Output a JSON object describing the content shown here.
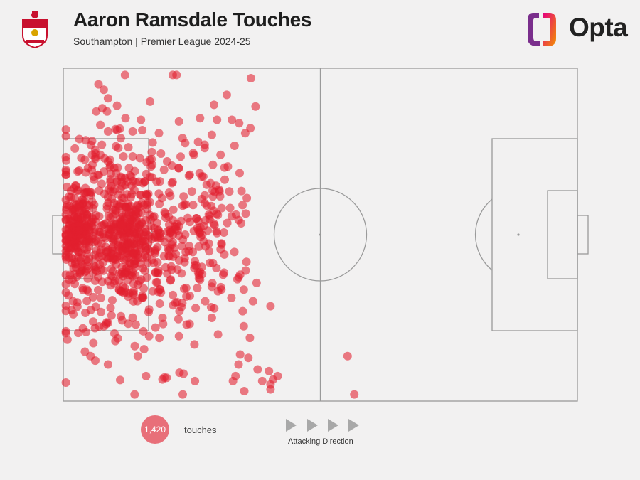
{
  "header": {
    "title": "Aaron Ramsdale Touches",
    "subtitle": "Southampton | Premier League 2024-25",
    "logo_text": "Opta"
  },
  "icons": {
    "crest": "southampton-crest-icon",
    "logo": "opta-logo-icon",
    "direction": "play-arrow-icon"
  },
  "colors": {
    "touch": "#e21f2f",
    "pitch_line": "#9a9a9a",
    "background": "#f2f1f1"
  },
  "legend": {
    "count": "1,420",
    "label": "touches",
    "direction_label": "Attacking Direction"
  },
  "chart_data": {
    "type": "scatter",
    "title": "Aaron Ramsdale Touches",
    "xlim": [
      0,
      100
    ],
    "ylim": [
      0,
      100
    ],
    "total": 1420,
    "points": [
      [
        36.5,
        97
      ],
      [
        31.8,
        92
      ],
      [
        37.4,
        88.5
      ],
      [
        7.6,
        88
      ],
      [
        6.4,
        87
      ],
      [
        8.5,
        87
      ],
      [
        12.1,
        85
      ],
      [
        15.1,
        84.5
      ],
      [
        26.6,
        85
      ],
      [
        32.8,
        84.5
      ],
      [
        34.2,
        83.5
      ],
      [
        7.2,
        83
      ],
      [
        22.5,
        84
      ],
      [
        29.9,
        84.5
      ],
      [
        36.4,
        82
      ],
      [
        8.7,
        81
      ],
      [
        10.5,
        81.5
      ],
      [
        13.5,
        81
      ],
      [
        18.6,
        80.5
      ],
      [
        35.4,
        80.5
      ],
      [
        23.2,
        79
      ],
      [
        28.9,
        80
      ],
      [
        23.7,
        77.5
      ],
      [
        7.5,
        77
      ],
      [
        6.2,
        75.5
      ],
      [
        10.7,
        76
      ],
      [
        27.5,
        76
      ],
      [
        5.6,
        74
      ],
      [
        3.5,
        73
      ],
      [
        7.2,
        74
      ],
      [
        11.7,
        73.5
      ],
      [
        30.6,
        74
      ],
      [
        25.4,
        74
      ],
      [
        13.5,
        73.5
      ],
      [
        8.7,
        72
      ],
      [
        14.9,
        73
      ],
      [
        16.8,
        72.5
      ],
      [
        20.2,
        72
      ],
      [
        29.1,
        71
      ],
      [
        2.8,
        69
      ],
      [
        12.8,
        70
      ],
      [
        17.3,
        71
      ],
      [
        32.0,
        70.5
      ],
      [
        22.4,
        70
      ],
      [
        4.8,
        70
      ],
      [
        7.9,
        69
      ],
      [
        19.6,
        69.5
      ],
      [
        10.3,
        68.5
      ],
      [
        13.2,
        67.5
      ],
      [
        24.6,
        68
      ],
      [
        26.9,
        67.5
      ],
      [
        31.4,
        66.5
      ],
      [
        34.3,
        68.5
      ],
      [
        6.0,
        66.5
      ],
      [
        12.5,
        66
      ],
      [
        15.5,
        65.5
      ],
      [
        18.8,
        66
      ],
      [
        21.1,
        65.5
      ],
      [
        27.9,
        65
      ],
      [
        30.3,
        63.5
      ],
      [
        4.3,
        64
      ],
      [
        9.7,
        63
      ],
      [
        16.2,
        62
      ],
      [
        25.0,
        63
      ],
      [
        29.1,
        61.5
      ],
      [
        32.3,
        63
      ],
      [
        35.7,
        61
      ],
      [
        3.8,
        60.5
      ],
      [
        11.8,
        61
      ],
      [
        19.2,
        61
      ],
      [
        23.4,
        61.5
      ],
      [
        27.5,
        59.5
      ],
      [
        30.8,
        58
      ],
      [
        21.4,
        57.5
      ],
      [
        6.0,
        59
      ],
      [
        14.5,
        59
      ],
      [
        33.6,
        56
      ],
      [
        1.8,
        57.5
      ],
      [
        4.6,
        55
      ],
      [
        12.7,
        56
      ],
      [
        24.2,
        55
      ],
      [
        28.3,
        56
      ],
      [
        17.0,
        54.5
      ],
      [
        8.4,
        53.5
      ],
      [
        20.6,
        53
      ],
      [
        31.9,
        53.5
      ],
      [
        14.8,
        53
      ],
      [
        26.1,
        52
      ],
      [
        29.9,
        50.5
      ],
      [
        23.7,
        50
      ],
      [
        5.0,
        51.5
      ],
      [
        11.1,
        51
      ],
      [
        18.0,
        50
      ],
      [
        9.7,
        48
      ],
      [
        21.1,
        47
      ],
      [
        2.5,
        48.5
      ],
      [
        27.3,
        48
      ],
      [
        15.9,
        46.5
      ],
      [
        7.3,
        45.5
      ],
      [
        13.7,
        44.5
      ],
      [
        24.4,
        45
      ],
      [
        19.6,
        43.5
      ],
      [
        25.6,
        42
      ],
      [
        28.5,
        41.5
      ],
      [
        3.4,
        42
      ],
      [
        10.2,
        42.5
      ],
      [
        16.4,
        41.5
      ],
      [
        22.2,
        39.5
      ],
      [
        6.5,
        39
      ],
      [
        12.8,
        39.5
      ],
      [
        18.5,
        38.5
      ],
      [
        31.1,
        38
      ],
      [
        34.4,
        38
      ],
      [
        1.8,
        36.5
      ],
      [
        8.7,
        36
      ],
      [
        14.8,
        36
      ],
      [
        20.9,
        36.5
      ],
      [
        26.6,
        36.5
      ],
      [
        37.6,
        35.5
      ],
      [
        4.6,
        33.5
      ],
      [
        11.8,
        32.5
      ],
      [
        17.4,
        33
      ],
      [
        23.9,
        34
      ],
      [
        30.1,
        33
      ],
      [
        35.1,
        33.5
      ],
      [
        1.9,
        30
      ],
      [
        7.3,
        31
      ],
      [
        14.4,
        30
      ],
      [
        21.8,
        29.5
      ],
      [
        27.6,
        30
      ],
      [
        32.7,
        31
      ],
      [
        36.9,
        30
      ],
      [
        40.3,
        28.5
      ],
      [
        9.2,
        28
      ],
      [
        16.7,
        27.5
      ],
      [
        22.6,
        27
      ],
      [
        34.9,
        27
      ],
      [
        4.3,
        26.5
      ],
      [
        11.2,
        25.5
      ],
      [
        19.3,
        25
      ],
      [
        28.9,
        25
      ],
      [
        35.1,
        22.5
      ],
      [
        8.7,
        23.5
      ],
      [
        14.1,
        23
      ],
      [
        24.0,
        23
      ],
      [
        2.9,
        20.5
      ],
      [
        16.7,
        19.5
      ],
      [
        22.5,
        19.5
      ],
      [
        30.1,
        20
      ],
      [
        36.3,
        19
      ],
      [
        13.9,
        16.5
      ],
      [
        25.5,
        17
      ],
      [
        5.3,
        13.5
      ],
      [
        14.5,
        13.5
      ],
      [
        34.4,
        14
      ],
      [
        36.0,
        13
      ],
      [
        8.7,
        11
      ],
      [
        34.1,
        11
      ],
      [
        37.8,
        9.5
      ],
      [
        40.0,
        9
      ],
      [
        16.1,
        7.5
      ],
      [
        19.3,
        6.5
      ],
      [
        20.1,
        7
      ],
      [
        25.6,
        6
      ],
      [
        33.5,
        7.5
      ],
      [
        33.0,
        6
      ],
      [
        38.7,
        6
      ],
      [
        40.8,
        6.5
      ],
      [
        41.7,
        7.5
      ],
      [
        40.3,
        5
      ],
      [
        35.2,
        3
      ],
      [
        40.3,
        3.5
      ],
      [
        55.3,
        13.5
      ],
      [
        56.6,
        2
      ]
    ]
  }
}
